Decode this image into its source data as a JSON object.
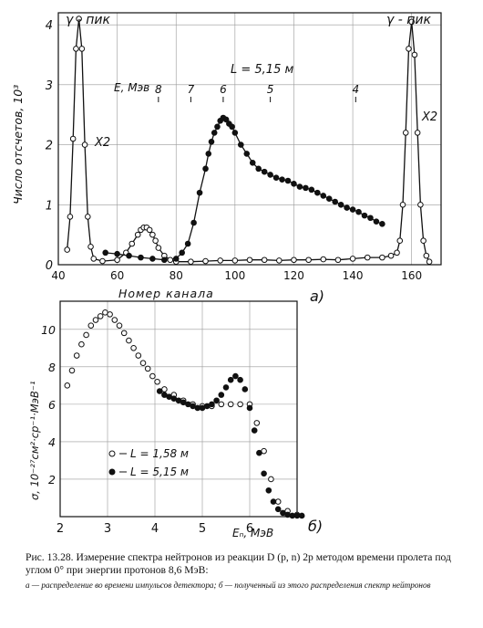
{
  "caption": {
    "main": "Рис. 13.28. Измерение спектра нейтронов из реакции D (p, n) 2p методом времени пролета под углом 0° при энергии протонов 8,6 МэВ:",
    "sub": "а — распределение во времени импульсов детектора; б — полученный из этого распределения спектр нейтронов"
  },
  "chart_data": [
    {
      "type": "scatter",
      "panel_label": "а)",
      "xlabel": "Номер канала",
      "ylabel": "Число отсчетов, 10³",
      "xlim": [
        40,
        170
      ],
      "ylim": [
        0,
        4.2
      ],
      "x_ticks": [
        "40",
        "60",
        "80",
        "100",
        "120",
        "140",
        "160"
      ],
      "y_ticks": [
        "0",
        "1",
        "2",
        "3",
        "4"
      ],
      "grid": true,
      "annotations": {
        "gamma_left": "γ - пик",
        "gamma_right": "γ - пик",
        "x2_left": "X2",
        "x2_right": "X2",
        "energy_axis_label": "E, Мэв",
        "distance_label": "L = 5,15 м"
      },
      "energy_axis": [
        {
          "label": "8",
          "channel": 74
        },
        {
          "label": "7",
          "channel": 85
        },
        {
          "label": "6",
          "channel": 96
        },
        {
          "label": "5",
          "channel": 112
        },
        {
          "label": "4",
          "channel": 141
        }
      ],
      "series": [
        {
          "marker": "open",
          "x": [
            43,
            44,
            45,
            46,
            47,
            48,
            49,
            50,
            51,
            52,
            55,
            60,
            63,
            65,
            67,
            68,
            69,
            70,
            71,
            72,
            73,
            74,
            76,
            78,
            80,
            85,
            90,
            95,
            100,
            105,
            110,
            115,
            120,
            125,
            130,
            135,
            140,
            145,
            150,
            153,
            155,
            156,
            157,
            158,
            159,
            160,
            161,
            162,
            163,
            164,
            165,
            166
          ],
          "y": [
            0.25,
            0.8,
            2.1,
            3.6,
            4.1,
            3.6,
            2.0,
            0.8,
            0.3,
            0.1,
            0.06,
            0.08,
            0.2,
            0.35,
            0.5,
            0.58,
            0.62,
            0.62,
            0.58,
            0.5,
            0.4,
            0.28,
            0.15,
            0.08,
            0.05,
            0.05,
            0.06,
            0.07,
            0.07,
            0.08,
            0.08,
            0.07,
            0.08,
            0.08,
            0.09,
            0.08,
            0.1,
            0.12,
            0.12,
            0.15,
            0.2,
            0.4,
            1.0,
            2.2,
            3.6,
            4.05,
            3.5,
            2.2,
            1.0,
            0.4,
            0.15,
            0.05
          ]
        },
        {
          "marker": "filled",
          "x": [
            56,
            60,
            64,
            68,
            72,
            76,
            80,
            82,
            84,
            86,
            88,
            90,
            91,
            92,
            93,
            94,
            95,
            96,
            97,
            98,
            99,
            100,
            102,
            104,
            106,
            108,
            110,
            112,
            114,
            116,
            118,
            120,
            122,
            124,
            126,
            128,
            130,
            132,
            134,
            136,
            138,
            140,
            142,
            144,
            146,
            148,
            150
          ],
          "y": [
            0.2,
            0.18,
            0.15,
            0.12,
            0.1,
            0.08,
            0.1,
            0.2,
            0.35,
            0.7,
            1.2,
            1.6,
            1.85,
            2.05,
            2.2,
            2.3,
            2.4,
            2.45,
            2.42,
            2.35,
            2.3,
            2.2,
            2.0,
            1.85,
            1.7,
            1.6,
            1.55,
            1.5,
            1.45,
            1.42,
            1.4,
            1.35,
            1.3,
            1.28,
            1.25,
            1.2,
            1.15,
            1.1,
            1.05,
            1.0,
            0.95,
            0.92,
            0.88,
            0.82,
            0.78,
            0.72,
            0.68
          ]
        }
      ]
    },
    {
      "type": "scatter",
      "panel_label": "б)",
      "xlabel": "Eₙ, МэВ",
      "ylabel": "σ, 10⁻²⁷см²·ср⁻¹·МэВ⁻¹",
      "xlim": [
        2,
        7
      ],
      "ylim": [
        0,
        11.5
      ],
      "x_ticks": [
        "2",
        "3",
        "4",
        "5",
        "6"
      ],
      "y_ticks": [
        "2",
        "4",
        "6",
        "8",
        "10"
      ],
      "grid": true,
      "legend": [
        "L = 1,58 м",
        "L = 5,15 м"
      ],
      "series": [
        {
          "name": "L = 1,58 м",
          "marker": "open",
          "x": [
            2.15,
            2.25,
            2.35,
            2.45,
            2.55,
            2.65,
            2.75,
            2.85,
            2.95,
            3.05,
            3.15,
            3.25,
            3.35,
            3.45,
            3.55,
            3.65,
            3.75,
            3.85,
            3.95,
            4.05,
            4.2,
            4.4,
            4.6,
            4.8,
            5.0,
            5.2,
            5.4,
            5.6,
            5.8,
            6.0,
            6.15,
            6.3,
            6.45,
            6.6,
            6.8,
            7.0
          ],
          "y": [
            7.0,
            7.8,
            8.6,
            9.2,
            9.7,
            10.2,
            10.5,
            10.7,
            10.9,
            10.8,
            10.5,
            10.2,
            9.8,
            9.4,
            9.0,
            8.6,
            8.2,
            7.9,
            7.5,
            7.2,
            6.8,
            6.5,
            6.2,
            6.0,
            5.9,
            5.9,
            6.0,
            6.0,
            6.0,
            6.0,
            5.0,
            3.5,
            2.0,
            0.8,
            0.3,
            0.1
          ]
        },
        {
          "name": "L = 5,15 м",
          "marker": "filled",
          "x": [
            4.1,
            4.2,
            4.3,
            4.4,
            4.5,
            4.6,
            4.7,
            4.8,
            4.9,
            5.0,
            5.1,
            5.2,
            5.3,
            5.4,
            5.5,
            5.6,
            5.7,
            5.8,
            5.9,
            6.0,
            6.1,
            6.2,
            6.3,
            6.4,
            6.5,
            6.6,
            6.7,
            6.8,
            6.9,
            7.0,
            7.1
          ],
          "y": [
            6.7,
            6.5,
            6.4,
            6.3,
            6.2,
            6.1,
            6.0,
            5.9,
            5.8,
            5.8,
            5.9,
            6.0,
            6.2,
            6.5,
            6.9,
            7.3,
            7.5,
            7.3,
            6.8,
            5.8,
            4.6,
            3.4,
            2.3,
            1.4,
            0.8,
            0.4,
            0.2,
            0.1,
            0.05,
            0.05,
            0.05
          ]
        }
      ]
    }
  ]
}
